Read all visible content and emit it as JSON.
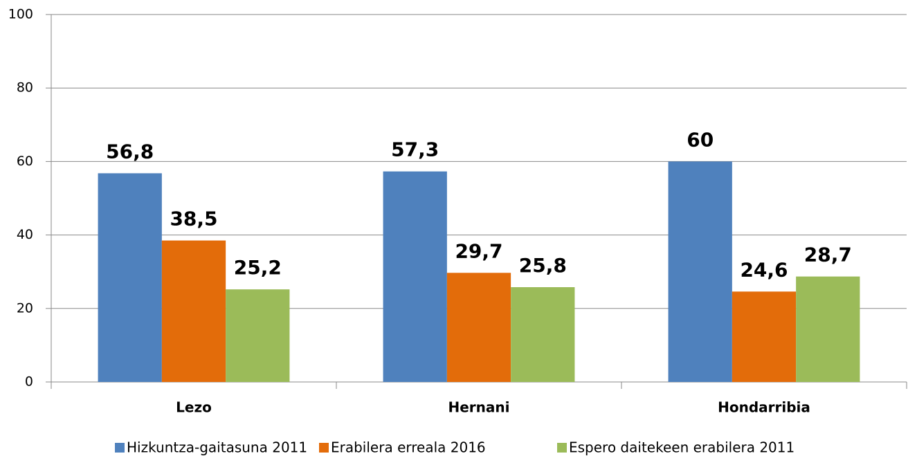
{
  "chart_data": {
    "type": "bar",
    "categories": [
      "Lezo",
      "Hernani",
      "Hondarribia"
    ],
    "series": [
      {
        "name": "Hizkuntza-gaitasuna 2011",
        "color": "#4f81bd",
        "values": [
          56.8,
          57.3,
          60
        ],
        "value_labels": [
          "56,8",
          "57,3",
          "60"
        ]
      },
      {
        "name": "Erabilera erreala 2016",
        "color": "#e36c0a",
        "values": [
          38.5,
          29.7,
          24.6
        ],
        "value_labels": [
          "38,5",
          "29,7",
          "24,6"
        ]
      },
      {
        "name": "Espero daitekeen erabilera 2011",
        "color": "#9bbb59",
        "values": [
          25.2,
          25.8,
          28.7
        ],
        "value_labels": [
          "25,2",
          "25,8",
          "28,7"
        ]
      }
    ],
    "ylim": [
      0,
      100
    ],
    "yticks": [
      0,
      20,
      40,
      60,
      80,
      100
    ],
    "grid": true
  }
}
